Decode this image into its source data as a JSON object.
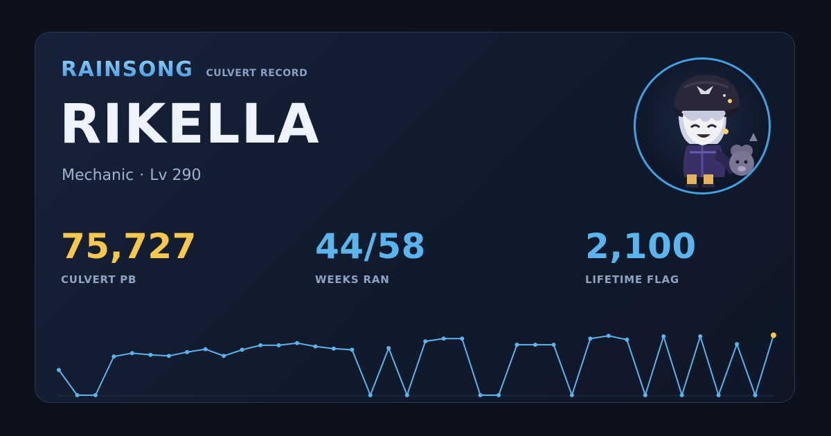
{
  "header": {
    "server": "RAINSONG",
    "record_label": "CULVERT RECORD"
  },
  "character": {
    "name": "RIKELLA",
    "job": "Mechanic",
    "separator": "·",
    "level": "Lv 290"
  },
  "stats": {
    "pb": {
      "value": "75,727",
      "label": "CULVERT PB"
    },
    "weeks": {
      "value": "44/58",
      "label": "WEEKS RAN"
    },
    "flag": {
      "value": "2,100",
      "label": "LIFETIME FLAG"
    }
  },
  "colors": {
    "accent_blue": "#5ab4ee",
    "accent_gold": "#f7c84a",
    "ring": "#3ea3e6"
  },
  "avatar": {
    "icon": "character-avatar-icon"
  },
  "chart_data": {
    "type": "line",
    "y_min": 0,
    "y_max": 1,
    "highlight_last": true,
    "values": [
      0.45,
      0.0,
      0.0,
      0.69,
      0.75,
      0.72,
      0.7,
      0.77,
      0.82,
      0.7,
      0.81,
      0.89,
      0.89,
      0.93,
      0.87,
      0.83,
      0.81,
      0.0,
      0.84,
      0.0,
      0.96,
      1.01,
      1.01,
      0.0,
      0.0,
      0.9,
      0.9,
      0.9,
      0.0,
      1.01,
      1.06,
      0.99,
      0.0,
      1.05,
      0.0,
      1.05,
      0.0,
      0.91,
      0.0,
      1.07
    ]
  }
}
